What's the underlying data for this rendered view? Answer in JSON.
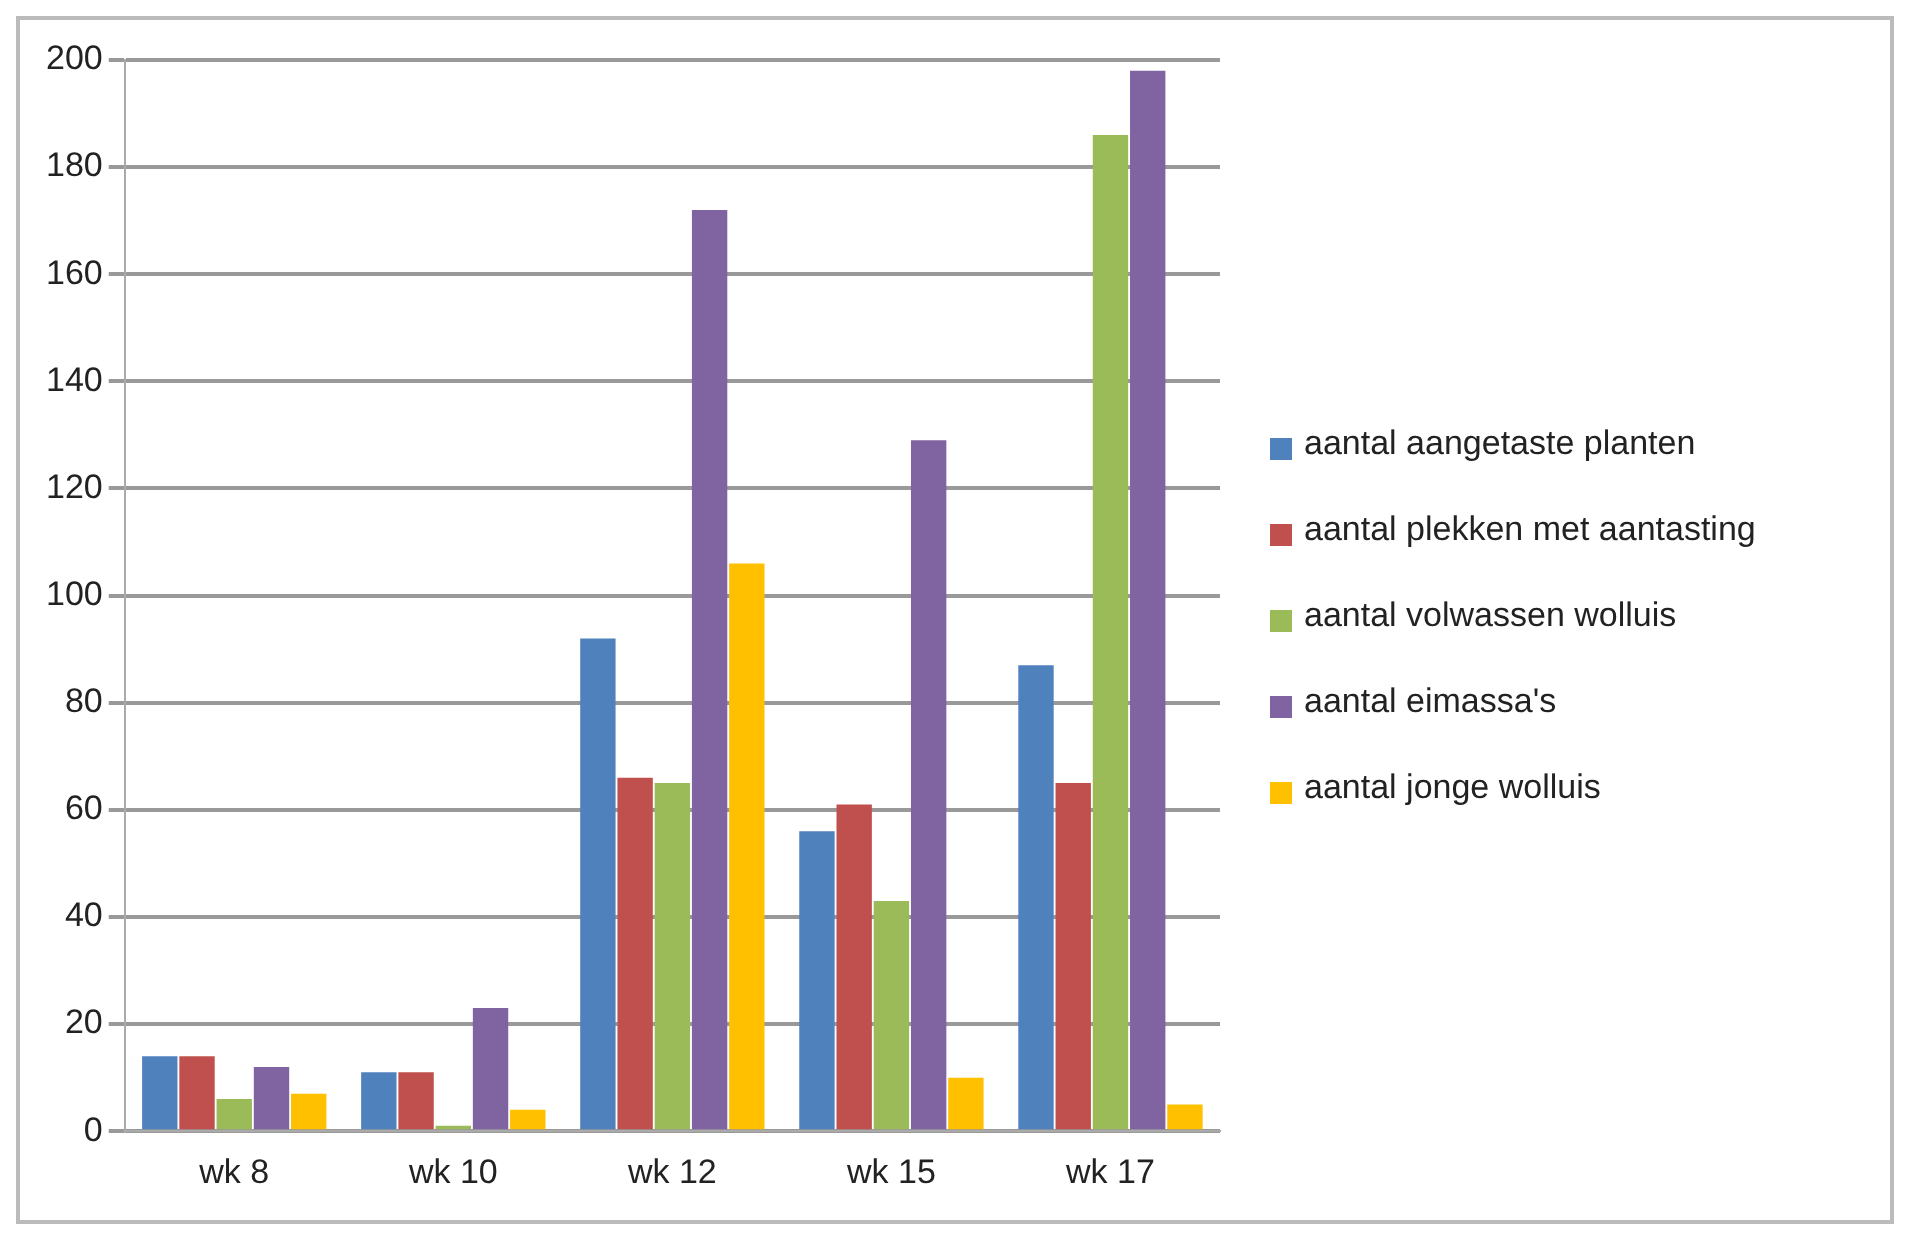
{
  "chart_data": {
    "type": "bar",
    "categories": [
      "wk 8",
      "wk 10",
      "wk 12",
      "wk 15",
      "wk 17"
    ],
    "series": [
      {
        "name": "aantal aangetaste planten",
        "color": "#4f81bd",
        "values": [
          14,
          11,
          92,
          56,
          87
        ]
      },
      {
        "name": "aantal plekken met aantasting",
        "color": "#c0504d",
        "values": [
          14,
          11,
          66,
          61,
          65
        ]
      },
      {
        "name": "aantal volwassen wolluis",
        "color": "#9bbb59",
        "values": [
          6,
          1,
          65,
          43,
          186
        ]
      },
      {
        "name": "aantal eimassa's",
        "color": "#8064a2",
        "values": [
          12,
          23,
          172,
          129,
          198
        ]
      },
      {
        "name": "aantal jonge wolluis",
        "color": "#ffc000",
        "values": [
          7,
          4,
          106,
          10,
          5
        ]
      }
    ],
    "ylim": [
      0,
      200
    ],
    "yticks": [
      0,
      20,
      40,
      60,
      80,
      100,
      120,
      140,
      160,
      180,
      200
    ],
    "grid": "y",
    "legend": "right"
  }
}
